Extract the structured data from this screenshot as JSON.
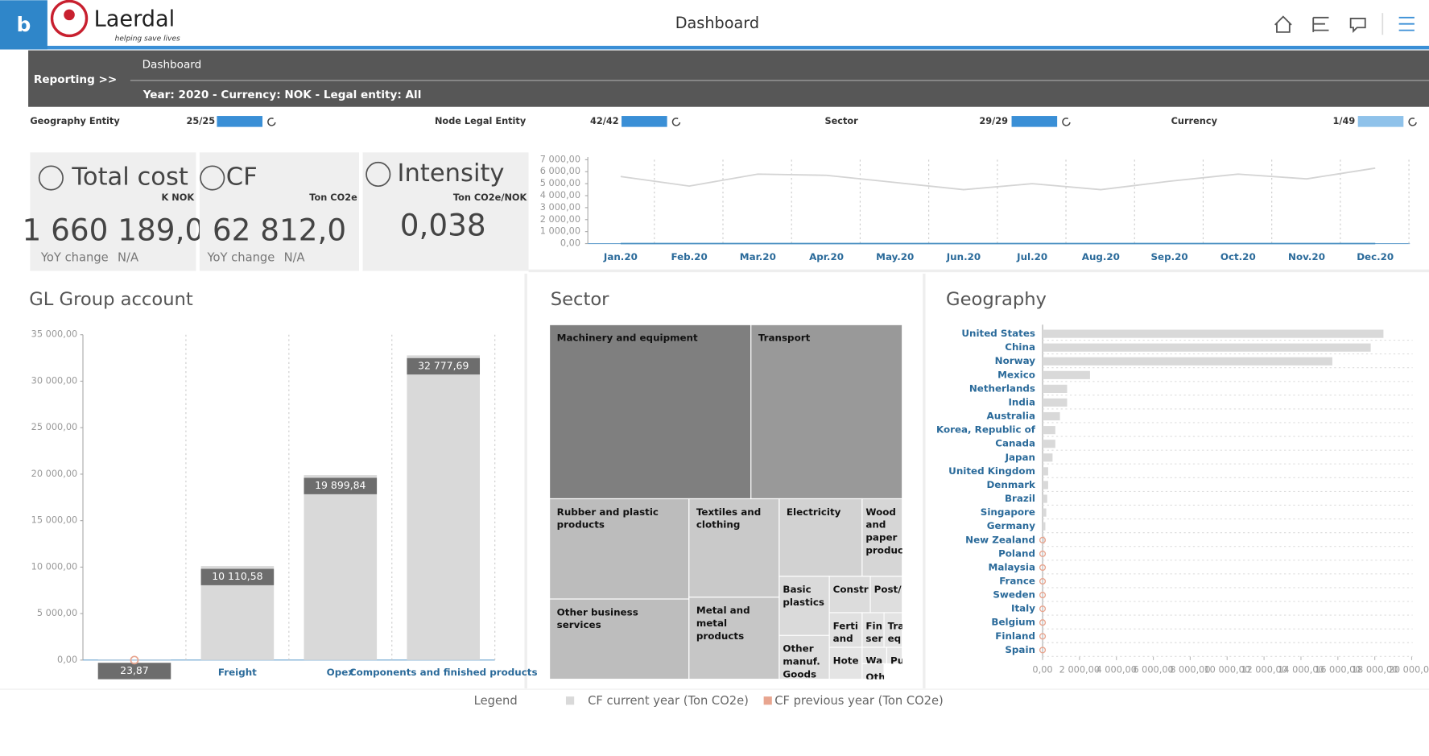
{
  "header": {
    "app_letter": "b",
    "brand": "Laerdal",
    "tagline": "helping save lives",
    "title": "Dashboard"
  },
  "nav": {
    "section": "Reporting >>",
    "page": "Dashboard",
    "context": "Year: 2020 - Currency: NOK - Legal entity: All"
  },
  "filters": [
    {
      "label": "Geography Entity",
      "count": "25/25"
    },
    {
      "label": "Node Legal Entity",
      "count": "42/42"
    },
    {
      "label": "Sector",
      "count": "29/29"
    },
    {
      "label": "Currency",
      "count": "1/49"
    }
  ],
  "kpis": [
    {
      "title": "Total cost",
      "unit": "K NOK",
      "value": "1 660 189,0",
      "yoy_label": "YoY change",
      "yoy": "N/A"
    },
    {
      "title": "CF",
      "unit": "Ton CO2e",
      "value": "62 812,0",
      "yoy_label": "YoY change",
      "yoy": "N/A"
    },
    {
      "title": "Intensity",
      "unit": "Ton CO2e/NOK",
      "value": "0,038"
    }
  ],
  "trend_chart": {
    "type": "line",
    "x": [
      "Jan.20",
      "Feb.20",
      "Mar.20",
      "Apr.20",
      "May.20",
      "Jun.20",
      "Jul.20",
      "Aug.20",
      "Sep.20",
      "Oct.20",
      "Nov.20",
      "Dec.20"
    ],
    "series": [
      {
        "color": "#d4d4d4",
        "values": [
          5600,
          4800,
          5800,
          5700,
          5100,
          4500,
          5000,
          4500,
          5200,
          5800,
          5400,
          6300
        ]
      },
      {
        "color": "#4a90c2",
        "values": [
          0,
          0,
          0,
          0,
          0,
          0,
          0,
          0,
          0,
          0,
          0,
          0
        ]
      }
    ],
    "ylim": [
      0,
      7000
    ],
    "yticks": [
      {
        "value": 0,
        "label": "0,00"
      },
      {
        "value": 1000,
        "label": "1 000,00"
      },
      {
        "value": 2000,
        "label": "2 000,00"
      },
      {
        "value": 3000,
        "label": "3 000,00"
      },
      {
        "value": 4000,
        "label": "4 000,00"
      },
      {
        "value": 5000,
        "label": "5 000,00"
      },
      {
        "value": 6000,
        "label": "6 000,00"
      },
      {
        "value": 7000,
        "label": "7 000,00"
      }
    ],
    "grid": true
  },
  "gl_chart": {
    "type": "bar",
    "title": "GL Group account",
    "categories": [
      null,
      "Freight",
      "Opex",
      "Components and finished products"
    ],
    "series": [
      {
        "color": "#d9d9d9",
        "values": [
          23.87,
          10110.58,
          19899.84,
          32777.69
        ],
        "value_labels": [
          "23,87",
          "10 110,58",
          "19 899,84",
          "32 777,69"
        ]
      },
      {
        "color": "#e8a58f",
        "values": [
          0,
          null,
          null,
          null
        ]
      }
    ],
    "ylim": [
      0,
      35000
    ],
    "yticks": [
      {
        "value": 0,
        "label": "0,00"
      },
      {
        "value": 5000,
        "label": "5 000,00"
      },
      {
        "value": 10000,
        "label": "10 000,00"
      },
      {
        "value": 15000,
        "label": "15 000,00"
      },
      {
        "value": 20000,
        "label": "20 000,00"
      },
      {
        "value": 25000,
        "label": "25 000,00"
      },
      {
        "value": 30000,
        "label": "30 000,00"
      },
      {
        "value": 35000,
        "label": "35 000,00"
      }
    ],
    "grid": true
  },
  "sector_chart": {
    "type": "treemap",
    "title": "Sector",
    "nodes": [
      {
        "label": "Machinery and equipment"
      },
      {
        "label": "Transport"
      },
      {
        "label": "Rubber and plastic products"
      },
      {
        "label": "Other business services"
      },
      {
        "label": "Textiles and clothing"
      },
      {
        "label": "Metal and metal products"
      },
      {
        "label": "Electricity"
      },
      {
        "label": "Wood and paper produc"
      },
      {
        "label": "Basic plastics"
      },
      {
        "label": "Constr"
      },
      {
        "label": "Post/"
      },
      {
        "label": "Other manuf. Goods"
      },
      {
        "label": "Ferti and"
      },
      {
        "label": "Fin ser"
      },
      {
        "label": "Tra eq"
      },
      {
        "label": "Hote"
      },
      {
        "label": "Wa"
      },
      {
        "label": "Pu"
      },
      {
        "label": "Oth"
      }
    ]
  },
  "geo_chart": {
    "type": "hbar",
    "title": "Geography",
    "categories": [
      "United States",
      "China",
      "Norway",
      "Mexico",
      "Netherlands",
      "India",
      "Australia",
      "Korea, Republic of",
      "Canada",
      "Japan",
      "United Kingdom",
      "Denmark",
      "Brazil",
      "Singapore",
      "Germany",
      "New Zealand",
      "Poland",
      "Malaysia",
      "France",
      "Sweden",
      "Italy",
      "Belgium",
      "Finland",
      "Spain"
    ],
    "series": [
      {
        "color": "#d9d9d9",
        "values": [
          18470,
          17780,
          15700,
          2570,
          1330,
          1330,
          940,
          690,
          690,
          540,
          300,
          300,
          250,
          200,
          150,
          100,
          50,
          50,
          50,
          50,
          50,
          50,
          50,
          50
        ]
      },
      {
        "color": "#e8a58f",
        "values": [
          null,
          null,
          null,
          null,
          null,
          null,
          null,
          null,
          null,
          null,
          null,
          null,
          null,
          null,
          null,
          0,
          0,
          0,
          0,
          0,
          0,
          0,
          0,
          0
        ]
      }
    ],
    "xlim": [
      0,
      20000
    ],
    "xticks": [
      {
        "value": 0,
        "label": "0,00"
      },
      {
        "value": 2000,
        "label": "2 000,00"
      },
      {
        "value": 4000,
        "label": "4 000,00"
      },
      {
        "value": 6000,
        "label": "6 000,00"
      },
      {
        "value": 8000,
        "label": "8 000,00"
      },
      {
        "value": 10000,
        "label": "10 000,00"
      },
      {
        "value": 12000,
        "label": "12 000,00"
      },
      {
        "value": 14000,
        "label": "14 000,00"
      },
      {
        "value": 16000,
        "label": "16 000,00"
      },
      {
        "value": 18000,
        "label": "18 000,00"
      },
      {
        "value": 20000,
        "label": "20 000,00"
      }
    ],
    "grid": true
  },
  "legend": {
    "title": "Legend",
    "items": [
      {
        "name": "CF current year (Ton CO2e)",
        "color": "#d9d9d9"
      },
      {
        "name": "CF previous year (Ton CO2e)",
        "color": "#e8a58f"
      }
    ]
  }
}
